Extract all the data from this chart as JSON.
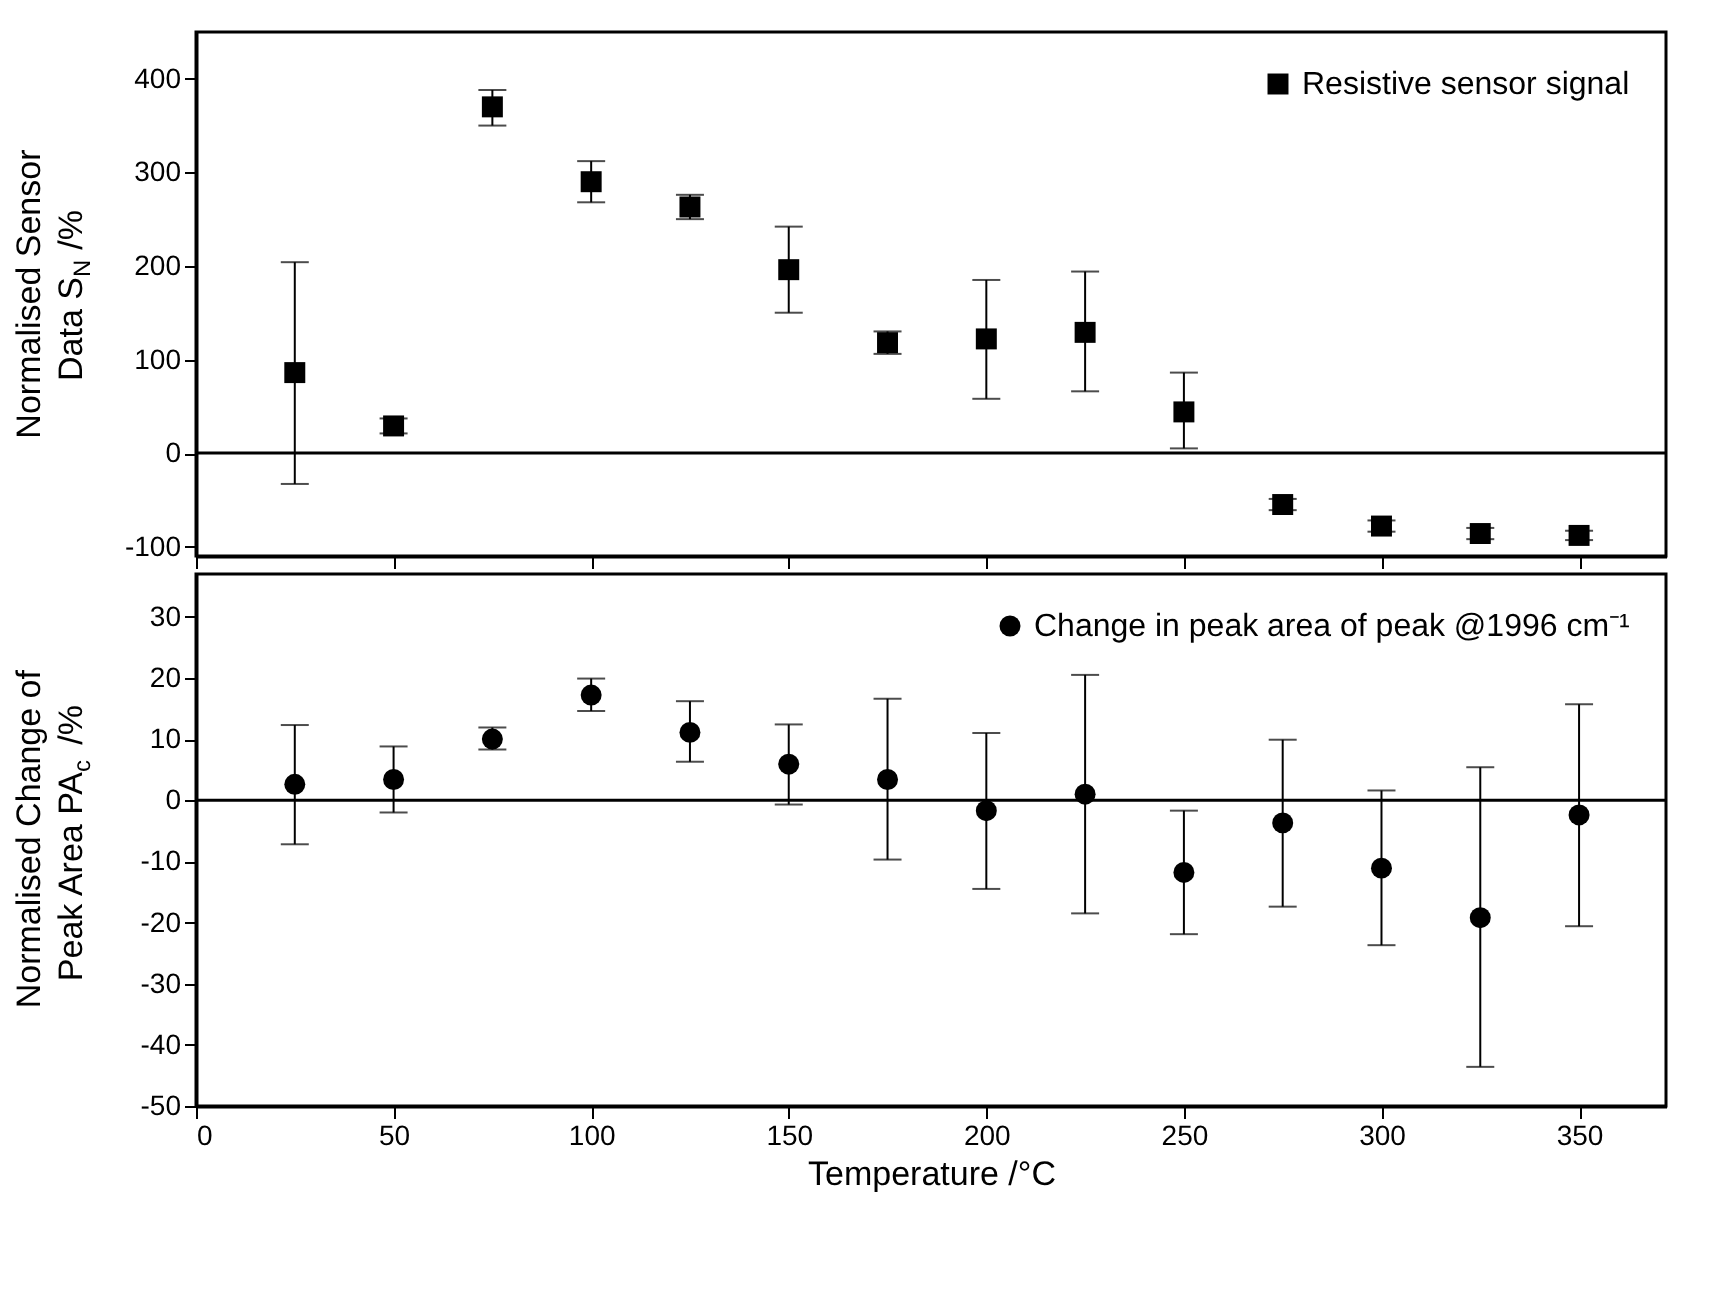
{
  "chart_data": [
    {
      "type": "scatter",
      "ylabel": "Normalised Sensor\nData S$_{N}$ /%",
      "x": [
        25,
        50,
        75,
        100,
        125,
        150,
        175,
        200,
        225,
        250,
        275,
        300,
        325,
        350
      ],
      "series": [
        {
          "name": "Resistive sensor signal",
          "color": "#000000",
          "marker": "square",
          "values": [
            86,
            29,
            370,
            290,
            263,
            196,
            118,
            122,
            129,
            44,
            -55,
            -78,
            -86,
            -88
          ],
          "errors": [
            [
              -33,
              204
            ],
            [
              21,
              37
            ],
            [
              350,
              388
            ],
            [
              268,
              312
            ],
            [
              250,
              276
            ],
            [
              150,
              242
            ],
            [
              106,
              130
            ],
            [
              58,
              185
            ],
            [
              66,
              194
            ],
            [
              5,
              86
            ],
            [
              -61,
              -49
            ],
            [
              -84,
              -72
            ],
            [
              -92,
              -80
            ],
            [
              -93,
              -83
            ]
          ]
        }
      ],
      "xlim": [
        0,
        372
      ],
      "xticks": [
        0,
        50,
        100,
        150,
        200,
        250,
        300,
        350
      ],
      "ylim": [
        -110,
        450
      ],
      "yticks": [
        -100,
        0,
        100,
        200,
        300,
        400
      ],
      "ref_lines": [
        {
          "axis": "y",
          "value": 0,
          "color": "#000000"
        }
      ],
      "tick_labels": "y",
      "legend": "top right",
      "grid": false
    },
    {
      "type": "scatter",
      "xlabel": "Temperature /°C",
      "ylabel": "Normalised Change of\nPeak Area PA$_{c}$ /%",
      "x": [
        25,
        50,
        75,
        100,
        125,
        150,
        175,
        200,
        225,
        250,
        275,
        300,
        325,
        350
      ],
      "series": [
        {
          "name": "Change in peak area of peak @1996 cm⁻¹",
          "color": "#000000",
          "marker": "circle",
          "values": [
            2.6,
            3.4,
            10,
            17.2,
            11.1,
            5.9,
            3.4,
            -1.7,
            1,
            -11.8,
            -3.7,
            -11.1,
            -19.2,
            -2.4
          ],
          "errors": [
            [
              -7.2,
              12.3
            ],
            [
              -2,
              8.8
            ],
            [
              8.3,
              11.9
            ],
            [
              14.6,
              19.9
            ],
            [
              6.3,
              16.2
            ],
            [
              -0.7,
              12.4
            ],
            [
              -9.7,
              16.6
            ],
            [
              -14.5,
              11
            ],
            [
              -18.5,
              20.5
            ],
            [
              -21.9,
              -1.7
            ],
            [
              -17.4,
              9.9
            ],
            [
              -23.7,
              1.6
            ],
            [
              -43.6,
              5.4
            ],
            [
              -20.6,
              15.7
            ]
          ]
        }
      ],
      "xlim": [
        0,
        372
      ],
      "xticks": [
        0,
        50,
        100,
        150,
        200,
        250,
        300,
        350
      ],
      "ylim": [
        -50,
        37
      ],
      "yticks": [
        -50,
        -40,
        -30,
        -20,
        -10,
        0,
        10,
        20,
        30
      ],
      "ref_lines": [
        {
          "axis": "y",
          "value": 0,
          "color": "#000000"
        }
      ],
      "legend": "top right",
      "grid": false
    }
  ]
}
